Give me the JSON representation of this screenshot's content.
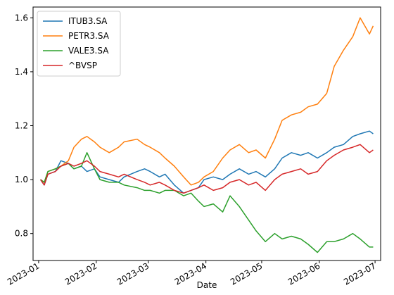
{
  "chart_data": {
    "type": "line",
    "xlabel": "Date",
    "ylabel": "",
    "x_ticks": [
      "2023-01",
      "2023-02",
      "2023-03",
      "2023-04",
      "2023-05",
      "2023-06",
      "2023-07"
    ],
    "y_ticks": [
      "0.8",
      "1.0",
      "1.2",
      "1.4",
      "1.6"
    ],
    "xlim": [
      "2022-12-29",
      "2023-07-04"
    ],
    "ylim": [
      0.7,
      1.64
    ],
    "grid": false,
    "legend_position": "top-left",
    "series": [
      {
        "name": "ITUB3.SA",
        "color": "#1f77b4",
        "points": [
          [
            "2023-01-02",
            1.0
          ],
          [
            "2023-01-04",
            0.98
          ],
          [
            "2023-01-06",
            1.02
          ],
          [
            "2023-01-10",
            1.03
          ],
          [
            "2023-01-13",
            1.07
          ],
          [
            "2023-01-17",
            1.06
          ],
          [
            "2023-01-20",
            1.04
          ],
          [
            "2023-01-24",
            1.05
          ],
          [
            "2023-01-27",
            1.03
          ],
          [
            "2023-01-31",
            1.04
          ],
          [
            "2023-02-03",
            1.01
          ],
          [
            "2023-02-08",
            1.0
          ],
          [
            "2023-02-13",
            0.99
          ],
          [
            "2023-02-16",
            1.01
          ],
          [
            "2023-02-23",
            1.03
          ],
          [
            "2023-02-27",
            1.04
          ],
          [
            "2023-03-02",
            1.03
          ],
          [
            "2023-03-07",
            1.01
          ],
          [
            "2023-03-10",
            1.02
          ],
          [
            "2023-03-15",
            0.98
          ],
          [
            "2023-03-20",
            0.95
          ],
          [
            "2023-03-24",
            0.96
          ],
          [
            "2023-03-28",
            0.97
          ],
          [
            "2023-03-31",
            1.0
          ],
          [
            "2023-04-05",
            1.01
          ],
          [
            "2023-04-10",
            1.0
          ],
          [
            "2023-04-14",
            1.02
          ],
          [
            "2023-04-19",
            1.04
          ],
          [
            "2023-04-24",
            1.02
          ],
          [
            "2023-04-28",
            1.03
          ],
          [
            "2023-05-03",
            1.01
          ],
          [
            "2023-05-08",
            1.04
          ],
          [
            "2023-05-12",
            1.08
          ],
          [
            "2023-05-17",
            1.1
          ],
          [
            "2023-05-22",
            1.09
          ],
          [
            "2023-05-26",
            1.1
          ],
          [
            "2023-05-31",
            1.08
          ],
          [
            "2023-06-05",
            1.1
          ],
          [
            "2023-06-09",
            1.12
          ],
          [
            "2023-06-14",
            1.13
          ],
          [
            "2023-06-19",
            1.16
          ],
          [
            "2023-06-23",
            1.17
          ],
          [
            "2023-06-28",
            1.18
          ],
          [
            "2023-06-30",
            1.17
          ]
        ]
      },
      {
        "name": "PETR3.SA",
        "color": "#ff7f0e",
        "points": [
          [
            "2023-01-02",
            1.0
          ],
          [
            "2023-01-04",
            0.99
          ],
          [
            "2023-01-06",
            1.03
          ],
          [
            "2023-01-10",
            1.04
          ],
          [
            "2023-01-13",
            1.05
          ],
          [
            "2023-01-17",
            1.07
          ],
          [
            "2023-01-20",
            1.12
          ],
          [
            "2023-01-24",
            1.15
          ],
          [
            "2023-01-27",
            1.16
          ],
          [
            "2023-01-31",
            1.14
          ],
          [
            "2023-02-03",
            1.12
          ],
          [
            "2023-02-08",
            1.1
          ],
          [
            "2023-02-13",
            1.12
          ],
          [
            "2023-02-16",
            1.14
          ],
          [
            "2023-02-23",
            1.15
          ],
          [
            "2023-02-27",
            1.13
          ],
          [
            "2023-03-02",
            1.12
          ],
          [
            "2023-03-07",
            1.1
          ],
          [
            "2023-03-10",
            1.08
          ],
          [
            "2023-03-15",
            1.05
          ],
          [
            "2023-03-20",
            1.01
          ],
          [
            "2023-03-24",
            0.98
          ],
          [
            "2023-03-28",
            0.99
          ],
          [
            "2023-03-31",
            1.01
          ],
          [
            "2023-04-05",
            1.03
          ],
          [
            "2023-04-10",
            1.08
          ],
          [
            "2023-04-14",
            1.11
          ],
          [
            "2023-04-19",
            1.13
          ],
          [
            "2023-04-24",
            1.1
          ],
          [
            "2023-04-28",
            1.11
          ],
          [
            "2023-05-03",
            1.08
          ],
          [
            "2023-05-08",
            1.15
          ],
          [
            "2023-05-12",
            1.22
          ],
          [
            "2023-05-17",
            1.24
          ],
          [
            "2023-05-22",
            1.25
          ],
          [
            "2023-05-26",
            1.27
          ],
          [
            "2023-05-31",
            1.28
          ],
          [
            "2023-06-05",
            1.32
          ],
          [
            "2023-06-09",
            1.42
          ],
          [
            "2023-06-14",
            1.48
          ],
          [
            "2023-06-19",
            1.53
          ],
          [
            "2023-06-23",
            1.6
          ],
          [
            "2023-06-28",
            1.54
          ],
          [
            "2023-06-30",
            1.57
          ]
        ]
      },
      {
        "name": "VALE3.SA",
        "color": "#2ca02c",
        "points": [
          [
            "2023-01-02",
            1.0
          ],
          [
            "2023-01-04",
            0.99
          ],
          [
            "2023-01-06",
            1.03
          ],
          [
            "2023-01-10",
            1.04
          ],
          [
            "2023-01-13",
            1.05
          ],
          [
            "2023-01-17",
            1.06
          ],
          [
            "2023-01-20",
            1.04
          ],
          [
            "2023-01-24",
            1.05
          ],
          [
            "2023-01-27",
            1.1
          ],
          [
            "2023-01-31",
            1.04
          ],
          [
            "2023-02-03",
            1.0
          ],
          [
            "2023-02-08",
            0.99
          ],
          [
            "2023-02-13",
            0.99
          ],
          [
            "2023-02-16",
            0.98
          ],
          [
            "2023-02-23",
            0.97
          ],
          [
            "2023-02-27",
            0.96
          ],
          [
            "2023-03-02",
            0.96
          ],
          [
            "2023-03-07",
            0.95
          ],
          [
            "2023-03-10",
            0.96
          ],
          [
            "2023-03-15",
            0.96
          ],
          [
            "2023-03-20",
            0.94
          ],
          [
            "2023-03-24",
            0.95
          ],
          [
            "2023-03-28",
            0.92
          ],
          [
            "2023-03-31",
            0.9
          ],
          [
            "2023-04-05",
            0.91
          ],
          [
            "2023-04-10",
            0.88
          ],
          [
            "2023-04-14",
            0.94
          ],
          [
            "2023-04-19",
            0.9
          ],
          [
            "2023-04-24",
            0.85
          ],
          [
            "2023-04-28",
            0.81
          ],
          [
            "2023-05-03",
            0.77
          ],
          [
            "2023-05-08",
            0.8
          ],
          [
            "2023-05-12",
            0.78
          ],
          [
            "2023-05-17",
            0.79
          ],
          [
            "2023-05-22",
            0.78
          ],
          [
            "2023-05-26",
            0.76
          ],
          [
            "2023-05-31",
            0.73
          ],
          [
            "2023-06-05",
            0.77
          ],
          [
            "2023-06-09",
            0.77
          ],
          [
            "2023-06-14",
            0.78
          ],
          [
            "2023-06-19",
            0.8
          ],
          [
            "2023-06-23",
            0.78
          ],
          [
            "2023-06-28",
            0.75
          ],
          [
            "2023-06-30",
            0.75
          ]
        ]
      },
      {
        "name": "^BVSP",
        "color": "#d62728",
        "points": [
          [
            "2023-01-02",
            1.0
          ],
          [
            "2023-01-04",
            0.98
          ],
          [
            "2023-01-06",
            1.02
          ],
          [
            "2023-01-10",
            1.03
          ],
          [
            "2023-01-13",
            1.05
          ],
          [
            "2023-01-17",
            1.06
          ],
          [
            "2023-01-20",
            1.05
          ],
          [
            "2023-01-24",
            1.06
          ],
          [
            "2023-01-27",
            1.07
          ],
          [
            "2023-01-31",
            1.05
          ],
          [
            "2023-02-03",
            1.03
          ],
          [
            "2023-02-08",
            1.02
          ],
          [
            "2023-02-13",
            1.01
          ],
          [
            "2023-02-16",
            1.02
          ],
          [
            "2023-02-23",
            1.0
          ],
          [
            "2023-02-27",
            0.99
          ],
          [
            "2023-03-02",
            0.98
          ],
          [
            "2023-03-07",
            0.99
          ],
          [
            "2023-03-10",
            0.98
          ],
          [
            "2023-03-15",
            0.96
          ],
          [
            "2023-03-20",
            0.95
          ],
          [
            "2023-03-24",
            0.96
          ],
          [
            "2023-03-28",
            0.97
          ],
          [
            "2023-03-31",
            0.98
          ],
          [
            "2023-04-05",
            0.96
          ],
          [
            "2023-04-10",
            0.97
          ],
          [
            "2023-04-14",
            0.99
          ],
          [
            "2023-04-19",
            1.0
          ],
          [
            "2023-04-24",
            0.98
          ],
          [
            "2023-04-28",
            0.99
          ],
          [
            "2023-05-03",
            0.96
          ],
          [
            "2023-05-08",
            1.0
          ],
          [
            "2023-05-12",
            1.02
          ],
          [
            "2023-05-17",
            1.03
          ],
          [
            "2023-05-22",
            1.04
          ],
          [
            "2023-05-26",
            1.02
          ],
          [
            "2023-05-31",
            1.03
          ],
          [
            "2023-06-05",
            1.07
          ],
          [
            "2023-06-09",
            1.09
          ],
          [
            "2023-06-14",
            1.11
          ],
          [
            "2023-06-19",
            1.12
          ],
          [
            "2023-06-23",
            1.13
          ],
          [
            "2023-06-28",
            1.1
          ],
          [
            "2023-06-30",
            1.11
          ]
        ]
      }
    ]
  }
}
